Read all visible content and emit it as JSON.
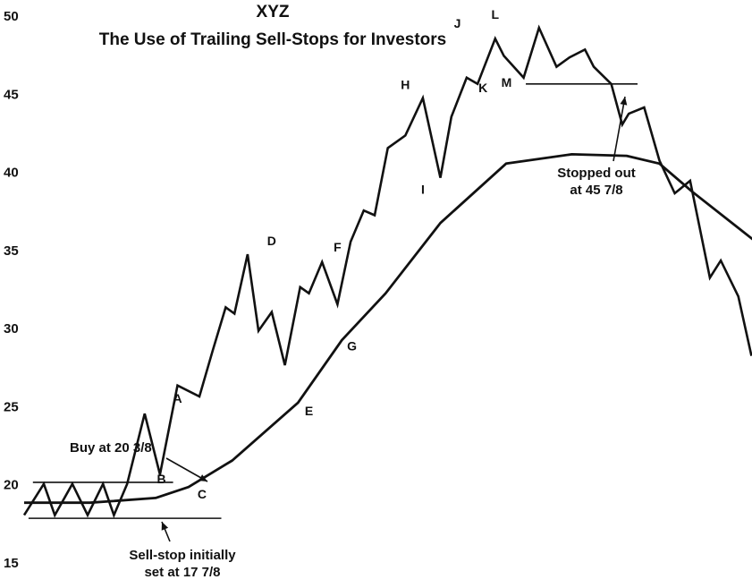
{
  "chart_data": {
    "type": "line",
    "title": "XYZ",
    "subtitle": "The Use of Trailing Sell-Stops for Investors",
    "xlabel": "",
    "ylabel": "",
    "ylim": [
      15,
      50
    ],
    "yticks": [
      "15",
      "20",
      "25",
      "30",
      "35",
      "40",
      "45",
      "50"
    ],
    "grid": false,
    "series": [
      {
        "role": "price",
        "x": [
          0,
          0.9,
          1.4,
          2.2,
          2.9,
          3.6,
          4.1,
          4.7,
          5.5,
          6.2,
          7.0,
          8.0,
          8.6,
          9.2,
          9.6,
          10.2,
          10.7,
          11.3,
          11.9,
          12.6,
          13.0,
          13.6,
          14.3,
          14.9,
          15.5,
          16.0,
          16.6,
          17.4,
          18.2,
          19.0,
          19.5,
          20.2,
          20.7,
          21.5,
          21.9,
          22.8,
          23.5,
          24.3,
          24.9,
          25.6,
          26.0,
          26.8,
          27.3,
          27.6,
          28.3,
          29.0,
          29.7,
          30.4,
          31.3,
          31.8,
          32.6,
          33.2
        ],
        "y": [
          18.0,
          20.0,
          18.0,
          20.0,
          18.0,
          20.0,
          18.0,
          20.0,
          24.5,
          20.6,
          26.3,
          25.6,
          28.5,
          31.3,
          30.9,
          34.7,
          29.8,
          31.0,
          27.6,
          32.6,
          32.2,
          34.2,
          31.5,
          35.5,
          37.5,
          37.2,
          41.5,
          42.3,
          44.7,
          39.6,
          43.5,
          46.0,
          45.6,
          48.5,
          47.4,
          46.0,
          49.2,
          46.7,
          47.3,
          47.8,
          46.7,
          45.6,
          43.0,
          43.7,
          44.1,
          40.7,
          38.6,
          39.4,
          33.2,
          34.3,
          32.0,
          28.2
        ]
      },
      {
        "role": "trailing-sell-stop",
        "x": [
          0,
          3.0,
          6.0,
          7.5,
          9.5,
          12.5,
          14.5,
          16.5,
          19.0,
          22.0,
          25.0,
          27.5,
          29.0,
          30.5,
          33.4
        ],
        "y": [
          18.8,
          18.8,
          19.1,
          19.8,
          21.5,
          25.2,
          29.2,
          32.2,
          36.7,
          40.5,
          41.1,
          41.0,
          40.5,
          38.7,
          35.5
        ]
      }
    ],
    "reference_lines": [
      {
        "name": "base-high",
        "y": 20.1
      },
      {
        "name": "base-low",
        "y": 17.8
      },
      {
        "name": "top-support",
        "y": 45.6
      }
    ],
    "point_labels": [
      {
        "text": "A",
        "x": 7.0,
        "y": 24.5
      },
      {
        "text": "B",
        "x": 7.0,
        "y": 20.6
      },
      {
        "text": "C",
        "x": 8.2,
        "y": 20.2
      },
      {
        "text": "D",
        "x": 11.3,
        "y": 34.7
      },
      {
        "text": "E",
        "x": 13.0,
        "y": 25.2
      },
      {
        "text": "F",
        "x": 14.3,
        "y": 34.2
      },
      {
        "text": "G",
        "x": 14.8,
        "y": 29.8
      },
      {
        "text": "H",
        "x": 17.4,
        "y": 44.7
      },
      {
        "text": "I",
        "x": 18.2,
        "y": 39.6
      },
      {
        "text": "J",
        "x": 19.9,
        "y": 48.5
      },
      {
        "text": "K",
        "x": 20.7,
        "y": 46.0
      },
      {
        "text": "L",
        "x": 21.5,
        "y": 49.2
      },
      {
        "text": "M",
        "x": 22.1,
        "y": 46.0
      }
    ],
    "annotations": [
      {
        "lines": [
          "Buy at 20 3/8"
        ],
        "x": 6.1,
        "y": 20.4
      },
      {
        "lines": [
          "Sell-stop initially",
          "set at 17 7/8"
        ],
        "x": 6.0,
        "y": 17.9
      },
      {
        "lines": [
          "Stopped out",
          "at 45 7/8"
        ],
        "x": 23.2,
        "y": 45.6
      }
    ]
  }
}
